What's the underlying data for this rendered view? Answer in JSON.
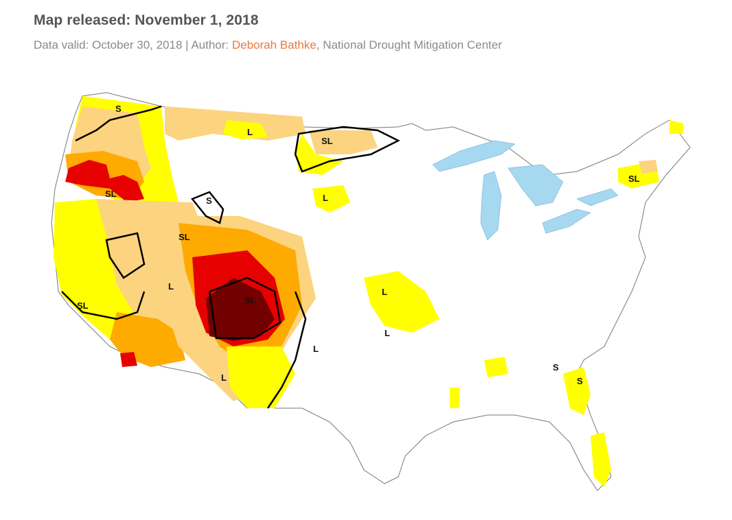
{
  "header": {
    "title": "Map released: November 1, 2018",
    "valid_prefix": "Data valid: October 30, 2018 | Author: ",
    "author_name": "Deborah Bathke",
    "author_suffix": ", National Drought Mitigation Center"
  },
  "map": {
    "colors": {
      "D0": "#ffff00",
      "D1": "#fcd37f",
      "D2": "#ffaa00",
      "D3": "#e60000",
      "D4": "#730000",
      "water": "#a6d8f0",
      "state_border": "#777777",
      "river": "#3a8fd8",
      "impact_line": "#000000"
    },
    "impact_labels": [
      "S",
      "SL",
      "L",
      "S",
      "SL",
      "L",
      "SL",
      "SL",
      "SL",
      "L",
      "L",
      "L",
      "L",
      "SL",
      "L",
      "L",
      "SL",
      "S",
      "S"
    ]
  }
}
